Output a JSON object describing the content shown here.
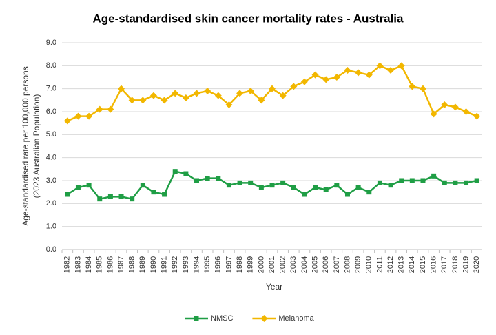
{
  "chart_data": {
    "type": "line",
    "title": "Age-standardised skin cancer mortality rates - Australia",
    "ylabel": [
      "Age-standardised rate per 100,000 persons",
      "(2023 Australian Population)"
    ],
    "xlabel": "Year",
    "categories": [
      "1982",
      "1983",
      "1984",
      "1985",
      "1986",
      "1987",
      "1988",
      "1989",
      "1990",
      "1991",
      "1992",
      "1993",
      "1994",
      "1995",
      "1996",
      "1997",
      "1998",
      "1999",
      "2000",
      "2001",
      "2002",
      "2003",
      "2004",
      "2005",
      "2006",
      "2007",
      "2008",
      "2009",
      "2010",
      "2011",
      "2012",
      "2013",
      "2014",
      "2015",
      "2016",
      "2017",
      "2018",
      "2019",
      "2020"
    ],
    "series": [
      {
        "name": "NMSC",
        "color": "#1f9e45",
        "marker": "square",
        "values": [
          2.4,
          2.7,
          2.8,
          2.2,
          2.3,
          2.3,
          2.2,
          2.8,
          2.5,
          2.4,
          3.4,
          3.3,
          3.0,
          3.1,
          3.1,
          2.8,
          2.9,
          2.9,
          2.7,
          2.8,
          2.9,
          2.7,
          2.4,
          2.7,
          2.6,
          2.8,
          2.4,
          2.7,
          2.5,
          2.9,
          2.8,
          3.0,
          3.0,
          3.0,
          3.2,
          2.9,
          2.9,
          2.9,
          3.0
        ]
      },
      {
        "name": "Melanoma",
        "color": "#f2b700",
        "marker": "diamond",
        "values": [
          5.6,
          5.8,
          5.8,
          6.1,
          6.1,
          7.0,
          6.5,
          6.5,
          6.7,
          6.5,
          6.8,
          6.6,
          6.8,
          6.9,
          6.7,
          6.3,
          6.8,
          6.9,
          6.5,
          7.0,
          6.7,
          7.1,
          7.3,
          7.6,
          7.4,
          7.5,
          7.8,
          7.7,
          7.6,
          8.0,
          7.8,
          8.0,
          7.1,
          7.0,
          5.9,
          6.3,
          6.2,
          6.0,
          5.8
        ]
      }
    ],
    "ylim": [
      0,
      9
    ],
    "yticks": [
      {
        "value": 0,
        "label": "0.0"
      },
      {
        "value": 1,
        "label": "1.0"
      },
      {
        "value": 2,
        "label": "2.0"
      },
      {
        "value": 3,
        "label": "3.0"
      },
      {
        "value": 4,
        "label": "4.0"
      },
      {
        "value": 5,
        "label": "5.0"
      },
      {
        "value": 6,
        "label": "6.0"
      },
      {
        "value": 7,
        "label": "7.0"
      },
      {
        "value": 8,
        "label": "8.0"
      },
      {
        "value": 9,
        "label": "9.0"
      }
    ],
    "grid": true,
    "legend": "bottom"
  }
}
